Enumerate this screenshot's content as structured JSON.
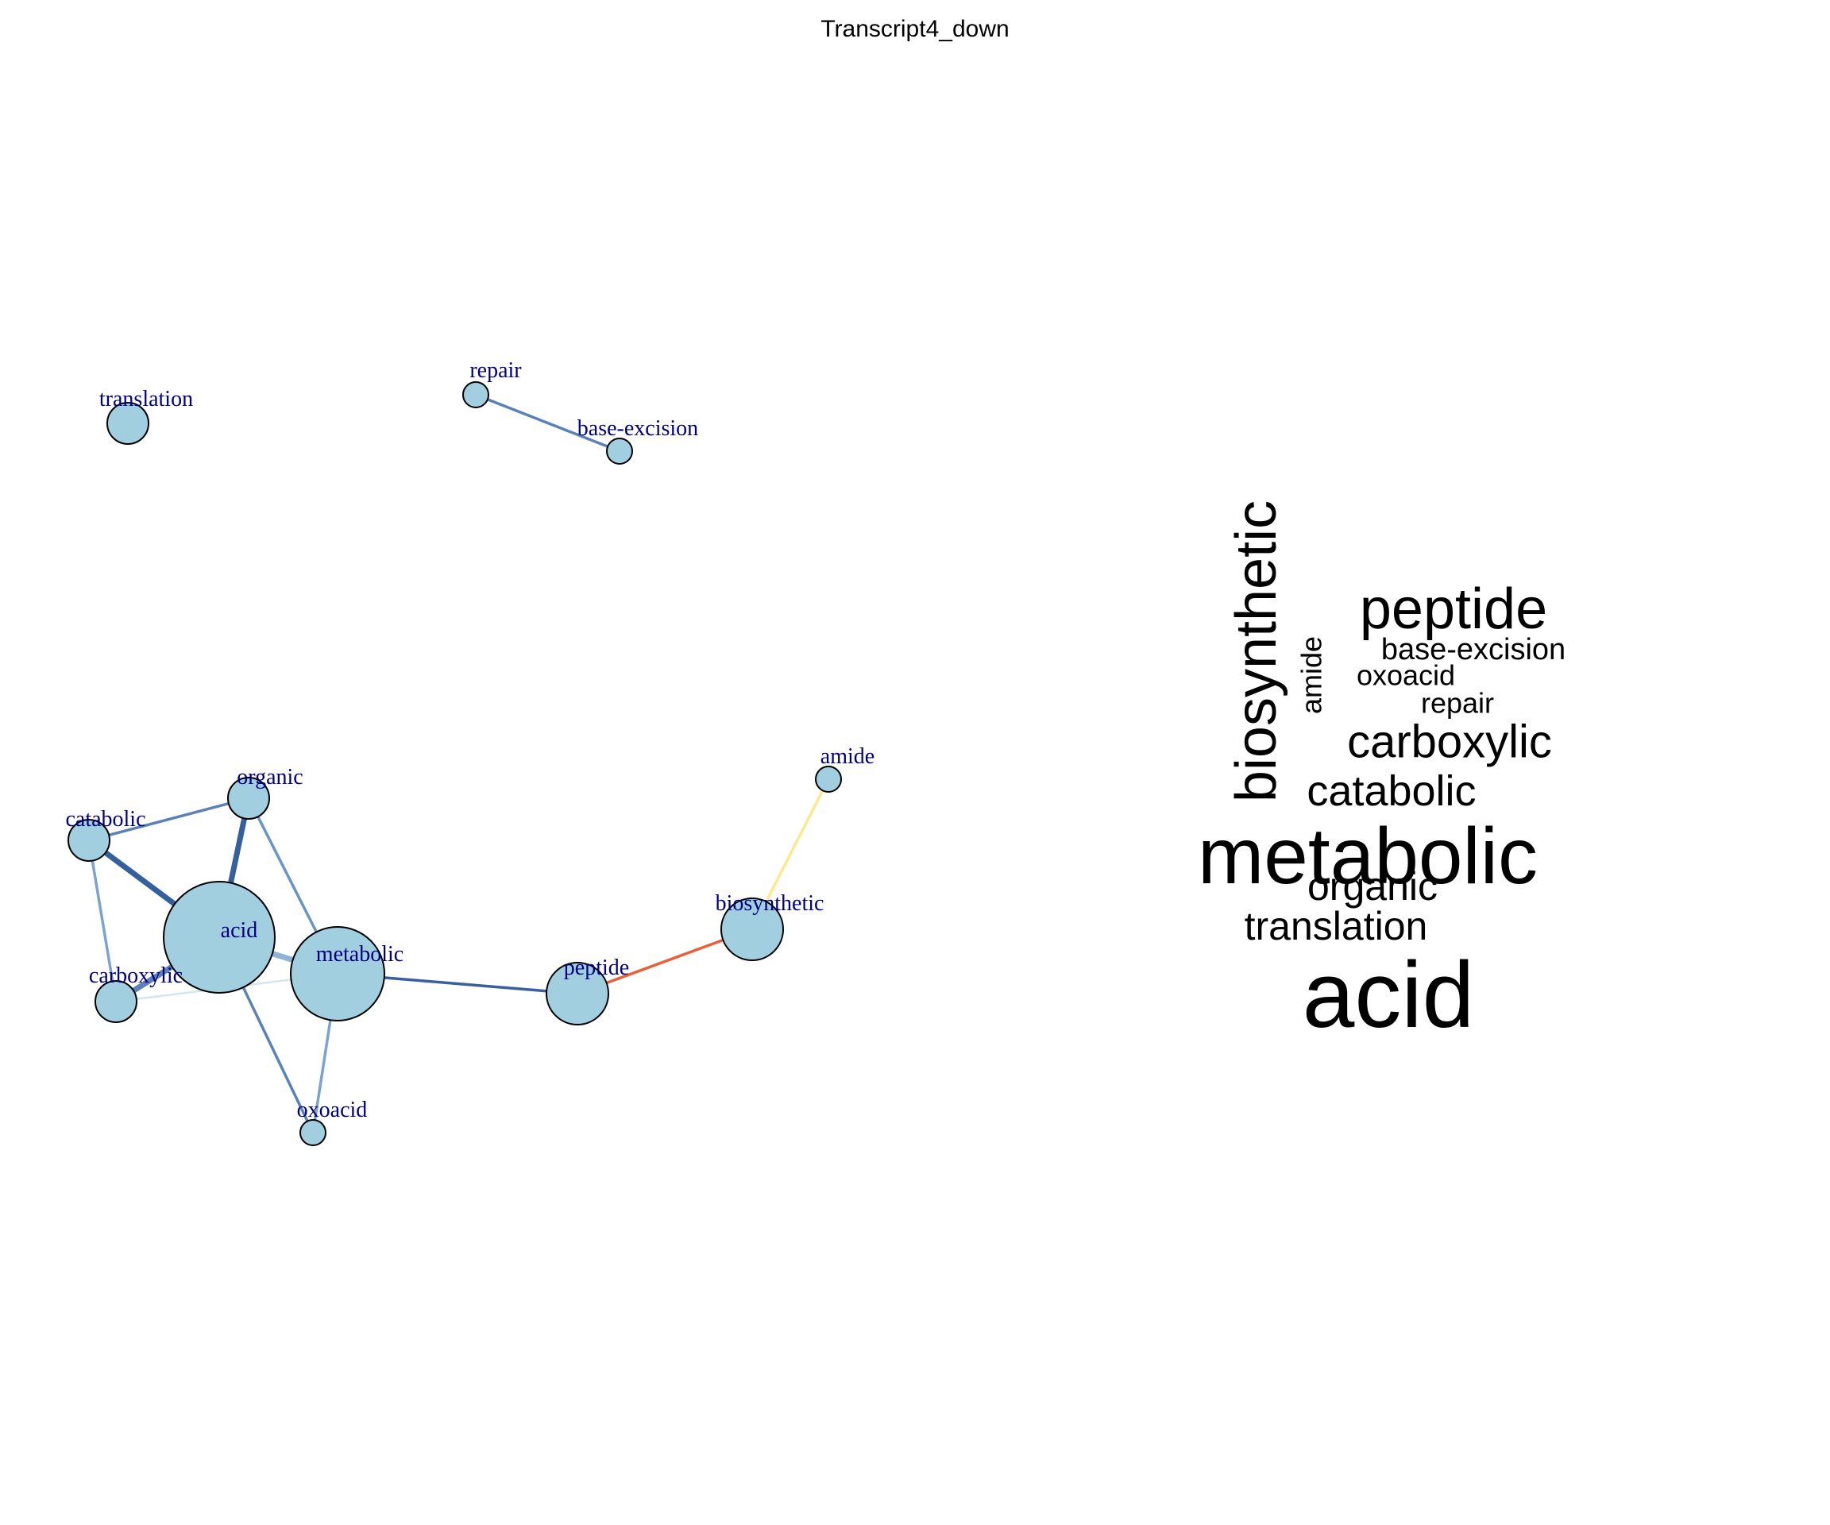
{
  "title": "Transcript4_down",
  "network": {
    "node_fill": "#a1cfe0",
    "label_color": "#00007f",
    "nodes": [
      {
        "id": "translation",
        "label": "translation",
        "size": "small"
      },
      {
        "id": "repair",
        "label": "repair",
        "size": "tiny"
      },
      {
        "id": "base-excision",
        "label": "base-excision",
        "size": "tiny"
      },
      {
        "id": "organic",
        "label": "organic",
        "size": "small"
      },
      {
        "id": "catabolic",
        "label": "catabolic",
        "size": "small"
      },
      {
        "id": "acid",
        "label": "acid",
        "size": "largest"
      },
      {
        "id": "metabolic",
        "label": "metabolic",
        "size": "large"
      },
      {
        "id": "carboxylic",
        "label": "carboxylic",
        "size": "small"
      },
      {
        "id": "oxoacid",
        "label": "oxoacid",
        "size": "tiny"
      },
      {
        "id": "peptide",
        "label": "peptide",
        "size": "medium"
      },
      {
        "id": "biosynthetic",
        "label": "biosynthetic",
        "size": "medium"
      },
      {
        "id": "amide",
        "label": "amide",
        "size": "tiny"
      }
    ],
    "edges": [
      {
        "source": "repair",
        "target": "base-excision",
        "color": "#5a82b8",
        "weight": "medium"
      },
      {
        "source": "organic",
        "target": "catabolic",
        "color": "#5a82b8",
        "weight": "medium"
      },
      {
        "source": "organic",
        "target": "acid",
        "color": "#35609e",
        "weight": "heavy"
      },
      {
        "source": "organic",
        "target": "metabolic",
        "color": "#6a95c3",
        "weight": "medium"
      },
      {
        "source": "catabolic",
        "target": "acid",
        "color": "#35609e",
        "weight": "heavy"
      },
      {
        "source": "catabolic",
        "target": "carboxylic",
        "color": "#7ba3cf",
        "weight": "medium"
      },
      {
        "source": "acid",
        "target": "metabolic",
        "color": "#8fb3d8",
        "weight": "heavy"
      },
      {
        "source": "acid",
        "target": "carboxylic",
        "color": "#5a82b8",
        "weight": "heavy"
      },
      {
        "source": "acid",
        "target": "oxoacid",
        "color": "#5a82b8",
        "weight": "medium"
      },
      {
        "source": "metabolic",
        "target": "carboxylic",
        "color": "#d3e6f0",
        "weight": "light"
      },
      {
        "source": "metabolic",
        "target": "oxoacid",
        "color": "#7ba3cf",
        "weight": "medium"
      },
      {
        "source": "metabolic",
        "target": "peptide",
        "color": "#3a5fa0",
        "weight": "medium"
      },
      {
        "source": "peptide",
        "target": "biosynthetic",
        "color": "#e8603c",
        "weight": "medium"
      },
      {
        "source": "biosynthetic",
        "target": "amide",
        "color": "#fde98b",
        "weight": "medium"
      }
    ]
  },
  "wordcloud": {
    "words": [
      {
        "text": "acid",
        "rank": 1,
        "rotated": false
      },
      {
        "text": "metabolic",
        "rank": 2,
        "rotated": false
      },
      {
        "text": "biosynthetic",
        "rank": 3,
        "rotated": true
      },
      {
        "text": "peptide",
        "rank": 4,
        "rotated": false
      },
      {
        "text": "carboxylic",
        "rank": 5,
        "rotated": false
      },
      {
        "text": "catabolic",
        "rank": 6,
        "rotated": false
      },
      {
        "text": "organic",
        "rank": 7,
        "rotated": false
      },
      {
        "text": "translation",
        "rank": 8,
        "rotated": false
      },
      {
        "text": "base-excision",
        "rank": 9,
        "rotated": false
      },
      {
        "text": "amide",
        "rank": 10,
        "rotated": true
      },
      {
        "text": "repair",
        "rank": 11,
        "rotated": false
      },
      {
        "text": "oxoacid",
        "rank": 12,
        "rotated": false
      }
    ]
  }
}
